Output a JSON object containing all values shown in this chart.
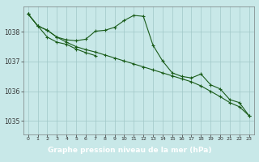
{
  "title": "Graphe pression niveau de la mer (hPa)",
  "background_color": "#c8e8e8",
  "plot_bg_color": "#c8e8e8",
  "label_bg_color": "#2d6e2d",
  "label_text_color": "#ffffff",
  "grid_color": "#a0c8c8",
  "line_color": "#1a5c1a",
  "xlim": [
    -0.5,
    23.5
  ],
  "ylim": [
    1034.55,
    1038.85
  ],
  "x_ticks": [
    0,
    1,
    2,
    3,
    4,
    5,
    6,
    7,
    8,
    9,
    10,
    11,
    12,
    13,
    14,
    15,
    16,
    17,
    18,
    19,
    20,
    21,
    22,
    23
  ],
  "y_ticks": [
    1035,
    1036,
    1037,
    1038
  ],
  "series1_x": [
    0,
    1,
    2,
    3,
    4,
    5,
    6,
    7,
    8,
    9,
    10,
    11,
    12,
    13,
    14,
    15,
    16,
    17,
    18,
    19,
    20,
    21,
    22,
    23
  ],
  "series1_y": [
    1038.6,
    1038.2,
    1038.05,
    1037.82,
    1037.73,
    1037.7,
    1037.75,
    1038.02,
    1038.05,
    1038.15,
    1038.38,
    1038.55,
    1038.52,
    1037.55,
    1037.02,
    1036.62,
    1036.5,
    1036.45,
    1036.58,
    1036.22,
    1036.08,
    1035.72,
    1035.62,
    1035.18
  ],
  "series2_x": [
    0,
    1,
    2,
    3,
    4,
    5,
    6,
    7,
    8,
    9,
    10,
    11,
    12,
    13,
    14,
    15,
    16,
    17,
    18,
    19,
    20,
    21,
    22,
    23
  ],
  "series2_y": [
    1038.6,
    1038.2,
    1038.05,
    1037.82,
    1037.65,
    1037.5,
    1037.4,
    1037.32,
    1037.22,
    1037.12,
    1037.02,
    1036.92,
    1036.82,
    1036.72,
    1036.62,
    1036.52,
    1036.42,
    1036.32,
    1036.18,
    1036.0,
    1035.82,
    1035.62,
    1035.48,
    1035.18
  ],
  "series3_x": [
    0,
    1,
    2,
    3,
    4,
    5,
    6,
    7
  ],
  "series3_y": [
    1038.6,
    1038.2,
    1037.82,
    1037.65,
    1037.58,
    1037.42,
    1037.3,
    1037.2
  ]
}
